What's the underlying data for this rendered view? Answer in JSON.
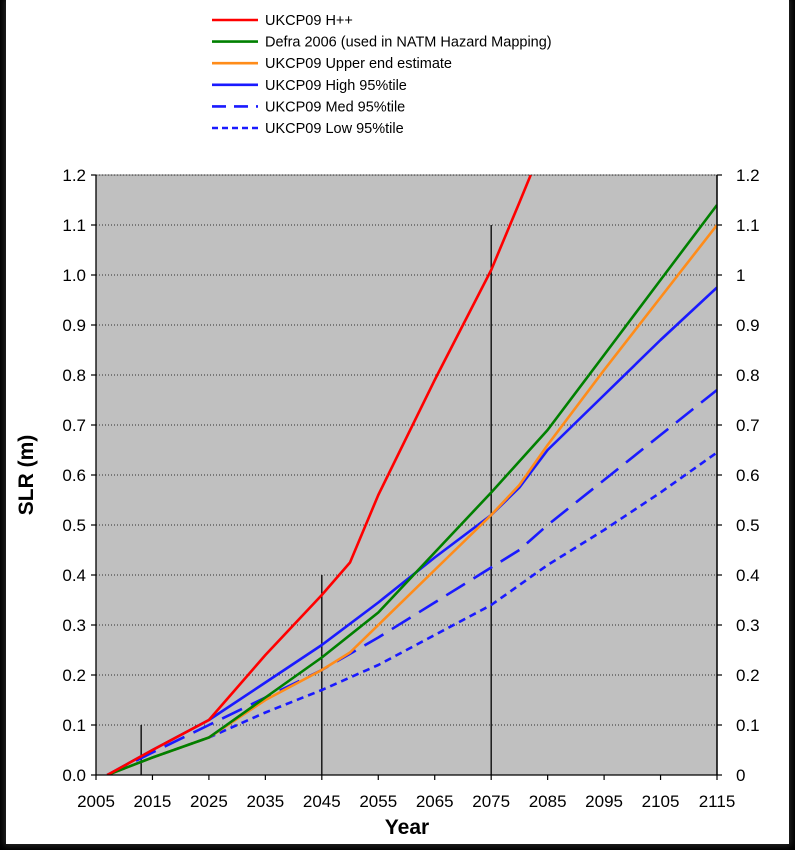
{
  "chart_data": {
    "type": "line",
    "title": "",
    "xlabel": "Year",
    "ylabel": "SLR (m)",
    "xlim": [
      2005,
      2115
    ],
    "ylim": [
      0,
      1.2
    ],
    "x_ticks": [
      "2005",
      "2015",
      "2025",
      "2035",
      "2045",
      "2055",
      "2065",
      "2075",
      "2085",
      "2095",
      "2105",
      "2115"
    ],
    "y_ticks_left": [
      "0.0",
      "0.1",
      "0.2",
      "0.3",
      "0.4",
      "0.5",
      "0.6",
      "0.7",
      "0.8",
      "0.9",
      "1.0",
      "1.1",
      "1.2"
    ],
    "y_ticks_right": [
      "0",
      "0.1",
      "0.2",
      "0.3",
      "0.4",
      "0.5",
      "0.6",
      "0.7",
      "0.8",
      "0.9",
      "1",
      "1.1",
      "1.2"
    ],
    "grid": "horizontal dotted",
    "background": "#c0c0c0",
    "legend_position": "top",
    "series": [
      {
        "name": "UKCP09 H++",
        "color": "#ff0000",
        "style": "solid",
        "x": [
          2007,
          2015,
          2025,
          2035,
          2045,
          2050,
          2055,
          2065,
          2075,
          2080,
          2082
        ],
        "y": [
          0.0,
          0.05,
          0.11,
          0.24,
          0.36,
          0.425,
          0.56,
          0.79,
          1.01,
          1.145,
          1.2
        ]
      },
      {
        "name": "Defra 2006 (used in NATM Hazard Mapping)",
        "color": "#008000",
        "style": "solid",
        "x": [
          2007,
          2015,
          2025,
          2035,
          2045,
          2055,
          2065,
          2075,
          2085,
          2095,
          2105,
          2115
        ],
        "y": [
          0.0,
          0.035,
          0.075,
          0.155,
          0.235,
          0.325,
          0.445,
          0.565,
          0.69,
          0.84,
          0.99,
          1.14
        ]
      },
      {
        "name": "UKCP09 Upper end estimate",
        "color": "#ff8c1a",
        "style": "solid",
        "x": [
          2007,
          2015,
          2025,
          2035,
          2045,
          2050,
          2055,
          2065,
          2075,
          2080,
          2085,
          2095,
          2105,
          2115
        ],
        "y": [
          0.0,
          0.035,
          0.075,
          0.15,
          0.21,
          0.245,
          0.3,
          0.41,
          0.52,
          0.58,
          0.66,
          0.81,
          0.955,
          1.1
        ]
      },
      {
        "name": "UKCP09 High 95%tile",
        "color": "#1a1aff",
        "style": "solid",
        "x": [
          2007,
          2015,
          2025,
          2035,
          2045,
          2055,
          2065,
          2075,
          2080,
          2085,
          2095,
          2105,
          2115
        ],
        "y": [
          0.0,
          0.05,
          0.11,
          0.185,
          0.26,
          0.345,
          0.435,
          0.52,
          0.575,
          0.65,
          0.76,
          0.87,
          0.975
        ]
      },
      {
        "name": "UKCP09 Med 95%tile",
        "color": "#1a1aff",
        "style": "long-dash",
        "x": [
          2007,
          2015,
          2025,
          2035,
          2045,
          2055,
          2065,
          2075,
          2080,
          2085,
          2095,
          2105,
          2115
        ],
        "y": [
          0.0,
          0.045,
          0.1,
          0.155,
          0.21,
          0.275,
          0.345,
          0.415,
          0.45,
          0.5,
          0.59,
          0.68,
          0.77
        ]
      },
      {
        "name": "UKCP09 Low 95%tile",
        "color": "#1a1aff",
        "style": "short-dash",
        "x": [
          2007,
          2015,
          2025,
          2035,
          2045,
          2055,
          2065,
          2075,
          2080,
          2085,
          2095,
          2105,
          2115
        ],
        "y": [
          0.0,
          0.035,
          0.075,
          0.125,
          0.17,
          0.22,
          0.28,
          0.34,
          0.38,
          0.42,
          0.49,
          0.565,
          0.645
        ]
      }
    ],
    "vertical_markers": [
      {
        "x": 2013,
        "y_top": 0.1
      },
      {
        "x": 2045,
        "y_top": 0.4
      },
      {
        "x": 2075,
        "y_top": 1.1
      },
      {
        "x": 2115,
        "y_top": 1.2
      }
    ]
  }
}
